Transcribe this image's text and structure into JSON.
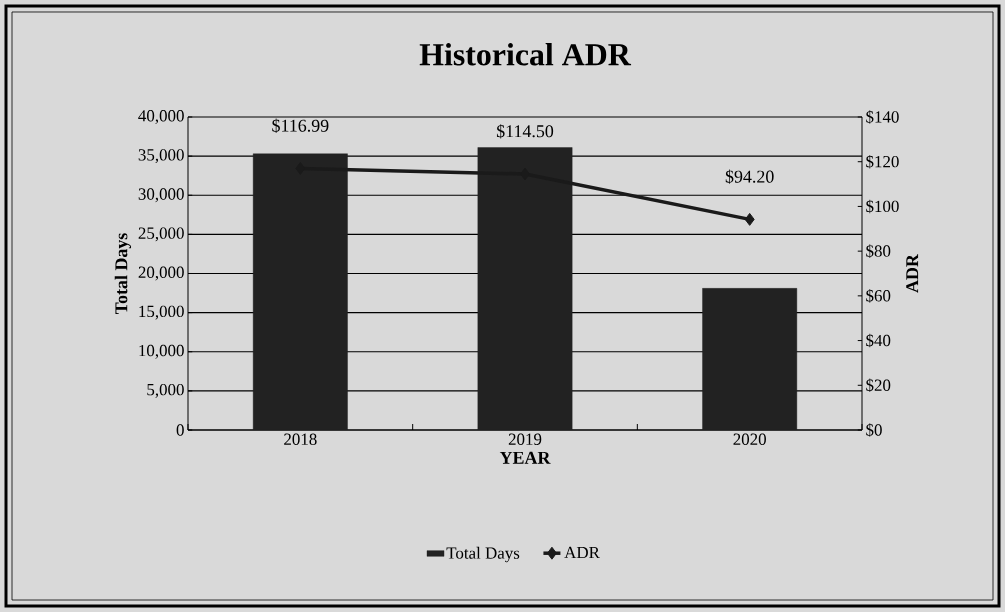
{
  "chart_data": {
    "type": "bar",
    "title": "Historical ADR",
    "xlabel": "YEAR",
    "ylabel": "Total Days",
    "y2label": "ADR",
    "categories": [
      "2018",
      "2019",
      "2020"
    ],
    "series": [
      {
        "name": "Total Days",
        "color": "#222222",
        "values": [
          35300,
          36100,
          18100
        ]
      },
      {
        "name": "ADR",
        "type": "line",
        "axis": "y2",
        "color": "#1a1a1a",
        "values": [
          116.99,
          114.5,
          94.2
        ],
        "value_labels": [
          "$116.99",
          "$114.50",
          "$94.20"
        ],
        "marker": "diamond",
        "line_style": "solid"
      }
    ],
    "ylim": [
      0,
      40000
    ],
    "yticks": [
      0,
      {
        "value": 5000,
        "label": "5,000"
      },
      {
        "value": 10000,
        "label": "10,000"
      },
      {
        "value": 15000,
        "label": "15,000"
      },
      {
        "value": 20000,
        "label": "20,000"
      },
      {
        "value": 25000,
        "label": "25,000"
      },
      {
        "value": 30000,
        "label": "30,000"
      },
      {
        "value": 35000,
        "label": "35,000"
      },
      {
        "value": 40000,
        "label": "40,000"
      }
    ],
    "y2lim": [
      0,
      140
    ],
    "y2ticks": [
      {
        "value": 0,
        "label": "$0"
      },
      {
        "value": 20,
        "label": "$20"
      },
      {
        "value": 40,
        "label": "$40"
      },
      {
        "value": 60,
        "label": "$60"
      },
      {
        "value": 80,
        "label": "$80"
      },
      {
        "value": 100,
        "label": "$100"
      },
      {
        "value": 120,
        "label": "$120"
      },
      {
        "value": 140,
        "label": "$140"
      }
    ],
    "grid": "y",
    "legend": "bottom"
  }
}
